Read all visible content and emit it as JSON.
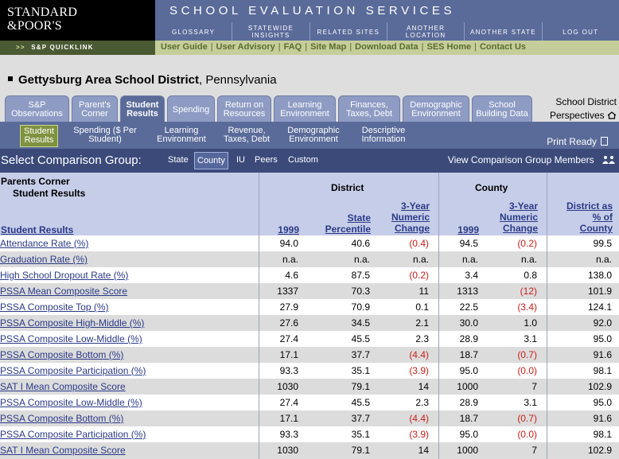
{
  "logo": {
    "line1": "STANDARD",
    "line2": "&POOR'S"
  },
  "header": {
    "title": "SCHOOL EVALUATION SERVICES",
    "nav": [
      "GLOSSARY",
      "STATEWIDE INSIGHTS",
      "RELATED SITES",
      "ANOTHER LOCATION",
      "ANOTHER STATE",
      "LOG OUT"
    ]
  },
  "quicklink": {
    "label": "S&P QUICKLINK",
    "arrows": ">>",
    "links": [
      "User Guide",
      "User Advisory",
      "FAQ",
      "Site Map",
      "Download Data",
      "SES Home",
      "Contact Us"
    ]
  },
  "district": {
    "name": "Gettysburg Area School District",
    "state": ", Pennsylvania"
  },
  "tabs": [
    {
      "label": "S&P Observations",
      "active": false
    },
    {
      "label": "Parent's Corner",
      "active": false
    },
    {
      "label": "Student Results",
      "active": true
    },
    {
      "label": "Spending",
      "active": false
    },
    {
      "label": "Return on Resources",
      "active": false
    },
    {
      "label": "Learning Environment",
      "active": false
    },
    {
      "label": "Finances, Taxes, Debt",
      "active": false
    },
    {
      "label": "Demographic Environment",
      "active": false
    },
    {
      "label": "School Building Data",
      "active": false
    }
  ],
  "perspectives": {
    "line1": "School District",
    "line2": "Perspectives"
  },
  "subnav": [
    {
      "label": "Student Results",
      "active": true
    },
    {
      "label": "Spending ($ Per Student)",
      "active": false
    },
    {
      "label": "Learning Environment",
      "active": false
    },
    {
      "label": "Revenue, Taxes, Debt",
      "active": false
    },
    {
      "label": "Demographic Environment",
      "active": false
    },
    {
      "label": "Descriptive Information",
      "active": false
    }
  ],
  "print_ready": "Print Ready",
  "comparison": {
    "label": "Select Comparison Group:",
    "options": [
      "State",
      "County",
      "IU",
      "Peers",
      "Custom"
    ],
    "selected": "County",
    "view_members": "View Comparison Group Members"
  },
  "table": {
    "section": "Parents Corner",
    "subsection": "Student Results",
    "row_header": "Student Results",
    "group_district": "District",
    "group_county": "County",
    "columns": [
      "1999",
      "State Percentile",
      "3-Year Numeric Change",
      "1999",
      "3-Year Numeric Change",
      "District as % of County"
    ],
    "rows": [
      {
        "name": "Attendance Rate (%)",
        "d1999": "94.0",
        "pct": "40.6",
        "dchg": "(0.4)",
        "c1999": "94.5",
        "cchg": "(0.2)",
        "ratio": "99.5"
      },
      {
        "name": "Graduation Rate (%)",
        "d1999": "n.a.",
        "pct": "n.a.",
        "dchg": "n.a.",
        "c1999": "n.a.",
        "cchg": "n.a.",
        "ratio": "n.a."
      },
      {
        "name": "High School Dropout Rate (%)",
        "d1999": "4.6",
        "pct": "87.5",
        "dchg": "(0.2)",
        "c1999": "3.4",
        "cchg": "0.8",
        "ratio": "138.0"
      },
      {
        "name": "PSSA Mean Composite Score",
        "d1999": "1337",
        "pct": "70.3",
        "dchg": "11",
        "c1999": "1313",
        "cchg": "(12)",
        "ratio": "101.9"
      },
      {
        "name": "PSSA Composite Top (%)",
        "d1999": "27.9",
        "pct": "70.9",
        "dchg": "0.1",
        "c1999": "22.5",
        "cchg": "(3.4)",
        "ratio": "124.1"
      },
      {
        "name": "PSSA Composite High-Middle (%)",
        "d1999": "27.6",
        "pct": "34.5",
        "dchg": "2.1",
        "c1999": "30.0",
        "cchg": "1.0",
        "ratio": "92.0"
      },
      {
        "name": "PSSA Composite Low-Middle (%)",
        "d1999": "27.4",
        "pct": "45.5",
        "dchg": "2.3",
        "c1999": "28.9",
        "cchg": "3.1",
        "ratio": "95.0"
      },
      {
        "name": "PSSA Composite Bottom (%)",
        "d1999": "17.1",
        "pct": "37.7",
        "dchg": "(4.4)",
        "c1999": "18.7",
        "cchg": "(0.7)",
        "ratio": "91.6"
      },
      {
        "name": "PSSA Composite Participation (%)",
        "d1999": "93.3",
        "pct": "35.1",
        "dchg": "(3.9)",
        "c1999": "95.0",
        "cchg": "(0.0)",
        "ratio": "98.1"
      },
      {
        "name": "SAT I Mean Composite Score",
        "d1999": "1030",
        "pct": "79.1",
        "dchg": "14",
        "c1999": "1000",
        "cchg": "7",
        "ratio": "102.9"
      },
      {
        "name": "PSSA Composite Low-Middle (%)",
        "d1999": "27.4",
        "pct": "45.5",
        "dchg": "2.3",
        "c1999": "28.9",
        "cchg": "3.1",
        "ratio": "95.0"
      },
      {
        "name": "PSSA Composite Bottom (%)",
        "d1999": "17.1",
        "pct": "37.7",
        "dchg": "(4.4)",
        "c1999": "18.7",
        "cchg": "(0.7)",
        "ratio": "91.6"
      },
      {
        "name": "PSSA Composite Participation (%)",
        "d1999": "93.3",
        "pct": "35.1",
        "dchg": "(3.9)",
        "c1999": "95.0",
        "cchg": "(0.0)",
        "ratio": "98.1"
      },
      {
        "name": "SAT I Mean Composite Score",
        "d1999": "1030",
        "pct": "79.1",
        "dchg": "14",
        "c1999": "1000",
        "cchg": "7",
        "ratio": "102.9"
      }
    ]
  }
}
